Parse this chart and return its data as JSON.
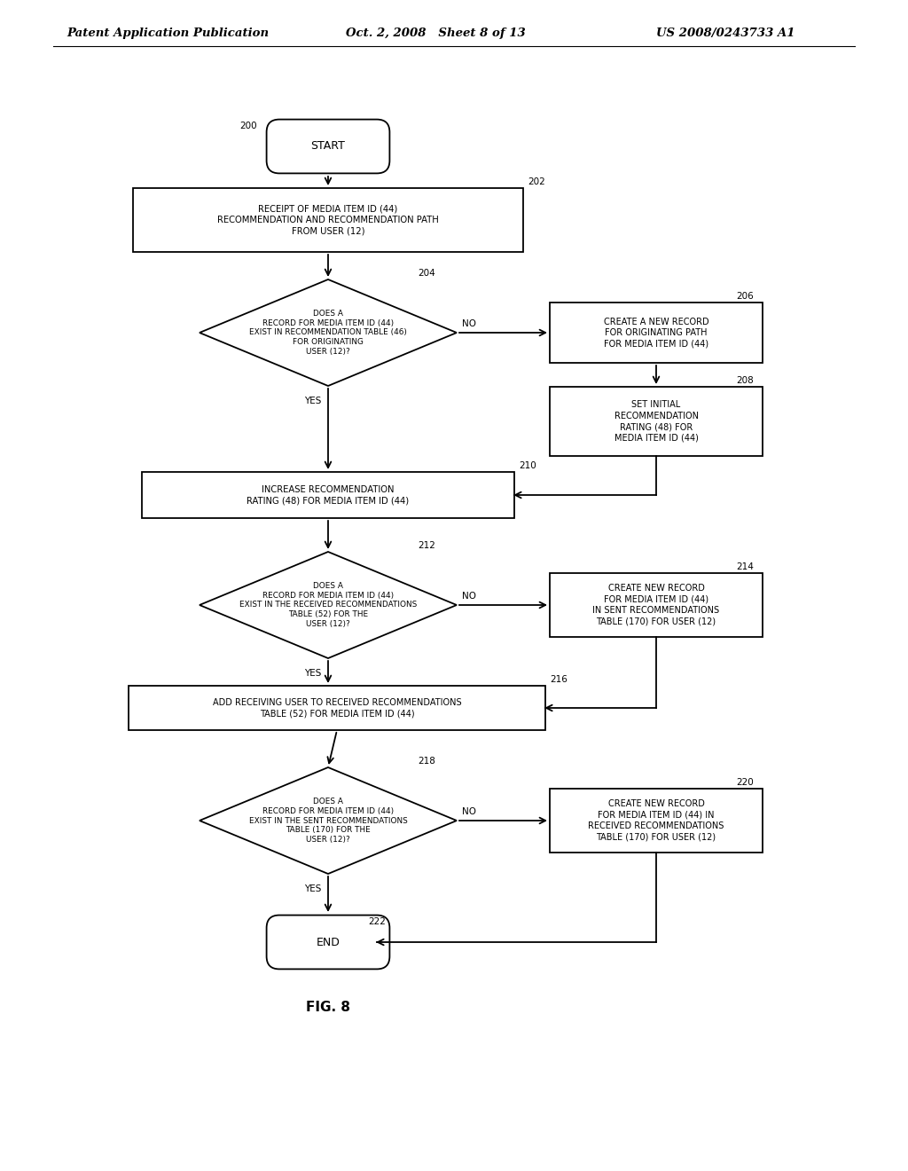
{
  "bg_color": "#ffffff",
  "header_left": "Patent Application Publication",
  "header_mid": "Oct. 2, 2008   Sheet 8 of 13",
  "header_right": "US 2008/0243733 A1",
  "fig_label": "FIG. 8",
  "start_label": "START",
  "end_label": "END",
  "box202_text": "RECEIPT OF MEDIA ITEM ID (44)\nRECOMMENDATION AND RECOMMENDATION PATH\nFROM USER (12)",
  "dia204_text": "DOES A\nRECORD FOR MEDIA ITEM ID (44)\nEXIST IN RECOMMENDATION TABLE (46)\nFOR ORIGINATING\nUSER (12)?",
  "box206_text": "CREATE A NEW RECORD\nFOR ORIGINATING PATH\nFOR MEDIA ITEM ID (44)",
  "box208_text": "SET INITIAL\nRECOMMENDATION\nRATING (48) FOR\nMEDIA ITEM ID (44)",
  "box210_text": "INCREASE RECOMMENDATION\nRATING (48) FOR MEDIA ITEM ID (44)",
  "dia212_text": "DOES A\nRECORD FOR MEDIA ITEM ID (44)\nEXIST IN THE RECEIVED RECOMMENDATIONS\nTABLE (52) FOR THE\nUSER (12)?",
  "box214_text": "CREATE NEW RECORD\nFOR MEDIA ITEM ID (44)\nIN SENT RECOMMENDATIONS\nTABLE (170) FOR USER (12)",
  "box216_text": "ADD RECEIVING USER TO RECEIVED RECOMMENDATIONS\nTABLE (52) FOR MEDIA ITEM ID (44)",
  "dia218_text": "DOES A\nRECORD FOR MEDIA ITEM ID (44)\nEXIST IN THE SENT RECOMMENDATIONS\nTABLE (170) FOR THE\nUSER (12)?",
  "box220_text": "CREATE NEW RECORD\nFOR MEDIA ITEM ID (44) IN\nRECEIVED RECOMMENDATIONS\nTABLE (170) FOR USER (12)",
  "lw": 1.3,
  "text_fontsize": 7.0,
  "ref_fontsize": 7.5,
  "header_fontsize": 9.5
}
